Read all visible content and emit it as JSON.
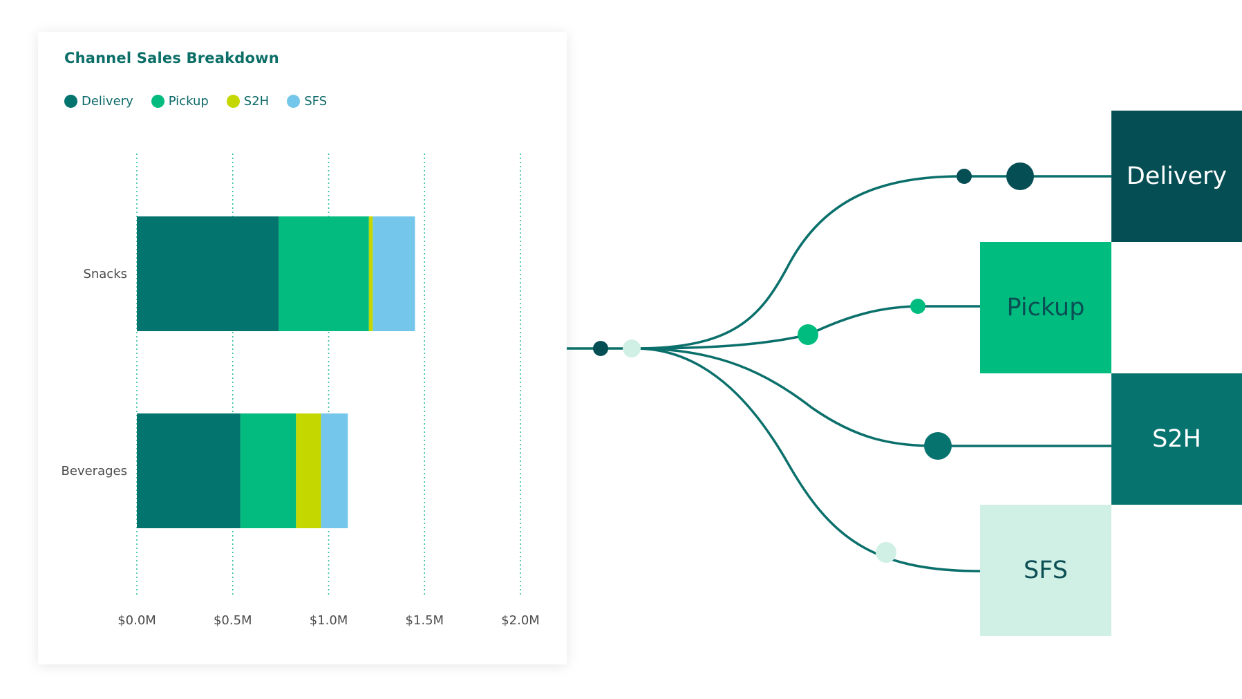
{
  "chart_data": {
    "type": "bar",
    "orientation": "horizontal",
    "stacked": true,
    "title": "Channel Sales Breakdown",
    "categories": [
      "Snacks",
      "Beverages"
    ],
    "series": [
      {
        "name": "Delivery",
        "color": "#04746f",
        "values": [
          0.74,
          0.54
        ]
      },
      {
        "name": "Pickup",
        "color": "#03bb7e",
        "values": [
          0.47,
          0.29
        ]
      },
      {
        "name": "S2H",
        "color": "#c4d800",
        "values": [
          0.02,
          0.13
        ]
      },
      {
        "name": "SFS",
        "color": "#74c6ea",
        "values": [
          0.22,
          0.14
        ]
      }
    ],
    "x_ticks": [
      "$0.0M",
      "$0.5M",
      "$1.0M",
      "$1.5M",
      "$2.0M"
    ],
    "x_tick_values": [
      0,
      0.5,
      1.0,
      1.5,
      2.0
    ],
    "xlim": [
      0,
      2.0
    ],
    "grid": "vertical dotted",
    "legend_position": "top-left"
  },
  "flow": {
    "line_color": "#0b706b",
    "channels": [
      {
        "label": "Delivery",
        "tile_color": "#054e54",
        "text_color": "#ffffff"
      },
      {
        "label": "Pickup",
        "tile_color": "#00bc7e",
        "text_color": "#0b4f55"
      },
      {
        "label": "S2H",
        "tile_color": "#06736f",
        "text_color": "#ffffff"
      },
      {
        "label": "SFS",
        "tile_color": "#d1f0e5",
        "text_color": "#0b4f55"
      }
    ]
  }
}
